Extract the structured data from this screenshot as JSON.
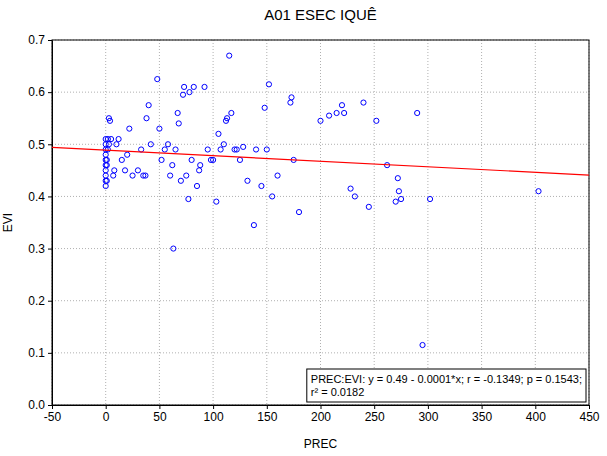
{
  "chart_data": {
    "type": "scatter",
    "title": "A01 ESEC IQUÊ",
    "x_label": "PREC",
    "y_label": "EVI",
    "x": [
      0,
      0,
      0,
      0,
      0,
      0,
      0,
      0,
      0,
      0,
      1,
      1,
      1,
      2,
      2,
      3,
      4,
      3,
      5,
      7,
      8,
      10,
      12,
      15,
      18,
      20,
      22,
      25,
      30,
      33,
      35,
      37,
      38,
      40,
      42,
      48,
      50,
      52,
      55,
      58,
      60,
      62,
      63,
      65,
      67,
      68,
      70,
      72,
      73,
      75,
      77,
      78,
      80,
      82,
      85,
      87,
      88,
      92,
      95,
      98,
      100,
      103,
      105,
      107,
      110,
      112,
      113,
      115,
      117,
      120,
      122,
      125,
      128,
      132,
      138,
      140,
      145,
      148,
      150,
      152,
      155,
      160,
      172,
      173,
      175,
      180,
      200,
      208,
      215,
      220,
      222,
      228,
      232,
      240,
      245,
      252,
      262,
      270,
      272,
      273,
      275,
      290,
      295,
      302,
      403
    ],
    "values": [
      0.42,
      0.43,
      0.44,
      0.45,
      0.46,
      0.47,
      0.48,
      0.49,
      0.5,
      0.51,
      0.43,
      0.46,
      0.47,
      0.49,
      0.51,
      0.55,
      0.545,
      0.5,
      0.51,
      0.44,
      0.45,
      0.5,
      0.51,
      0.47,
      0.45,
      0.48,
      0.53,
      0.44,
      0.45,
      0.49,
      0.44,
      0.44,
      0.55,
      0.575,
      0.5,
      0.625,
      0.53,
      0.47,
      0.49,
      0.5,
      0.44,
      0.46,
      0.3,
      0.49,
      0.56,
      0.54,
      0.43,
      0.595,
      0.61,
      0.44,
      0.395,
      0.6,
      0.47,
      0.61,
      0.42,
      0.45,
      0.46,
      0.61,
      0.49,
      0.47,
      0.47,
      0.39,
      0.52,
      0.49,
      0.5,
      0.545,
      0.55,
      0.67,
      0.56,
      0.49,
      0.49,
      0.47,
      0.495,
      0.43,
      0.345,
      0.49,
      0.42,
      0.57,
      0.49,
      0.615,
      0.4,
      0.44,
      0.58,
      0.59,
      0.47,
      0.37,
      0.545,
      0.555,
      0.56,
      0.575,
      0.56,
      0.415,
      0.4,
      0.58,
      0.38,
      0.545,
      0.46,
      0.39,
      0.435,
      0.41,
      0.395,
      0.56,
      0.115,
      0.395,
      0.41
    ],
    "color": "#0000ff",
    "marker": "circle",
    "trend_line": {
      "x": [
        -50,
        450
      ],
      "values": [
        0.494,
        0.441
      ],
      "color": "#ff0000"
    },
    "annotations": [
      "PREC:EVI:   y = 0.49 - 0.0001*x;  r = -0.1349; p = 0.1543;",
      "r² = 0.0182"
    ],
    "xlim": [
      -50,
      450
    ],
    "xticks": [
      -50,
      0,
      50,
      100,
      150,
      200,
      250,
      300,
      350,
      400,
      450
    ],
    "ylim": [
      0,
      0.7
    ],
    "yticks": [
      {
        "value": 0,
        "label": "0.0"
      },
      0.1,
      0.2,
      0.3,
      0.4,
      0.5,
      0.6,
      0.7
    ],
    "grid": true
  }
}
